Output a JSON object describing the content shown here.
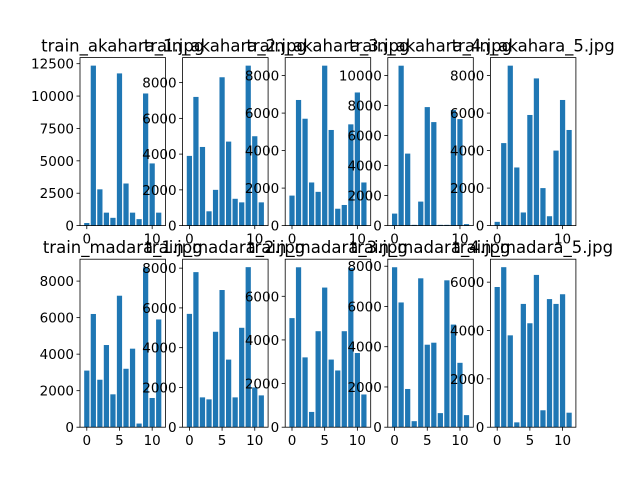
{
  "chart_data": [
    {
      "type": "bar",
      "title": "train_akahara_1.jpg",
      "color": "#1f77b4",
      "x": [
        0,
        1,
        2,
        3,
        4,
        5,
        6,
        7,
        8,
        9,
        10,
        11
      ],
      "values": [
        200,
        12350,
        2800,
        1000,
        600,
        11750,
        3250,
        1000,
        500,
        10200,
        4800,
        1000
      ],
      "xlim": [
        -1.04,
        12.04
      ],
      "ylim": [
        0,
        12970
      ],
      "xticks": [
        0,
        10
      ],
      "yticks": [
        0,
        2500,
        5000,
        7500,
        10000,
        12500
      ]
    },
    {
      "type": "bar",
      "title": "train_akahara_2.jpg",
      "color": "#1f77b4",
      "x": [
        0,
        1,
        2,
        3,
        4,
        5,
        6,
        7,
        8,
        9,
        10,
        11
      ],
      "values": [
        3900,
        7200,
        4400,
        800,
        2000,
        8300,
        4700,
        1500,
        1300,
        8950,
        5000,
        1300
      ],
      "xlim": [
        -1.04,
        12.04
      ],
      "ylim": [
        0,
        9400
      ],
      "xticks": [
        0,
        10
      ],
      "yticks": [
        0,
        2000,
        4000,
        6000,
        8000
      ]
    },
    {
      "type": "bar",
      "title": "train_akahara_3.jpg",
      "color": "#1f77b4",
      "x": [
        0,
        1,
        2,
        3,
        4,
        5,
        6,
        7,
        8,
        9,
        10,
        11
      ],
      "values": [
        1600,
        6700,
        5700,
        2300,
        1800,
        8530,
        5100,
        900,
        1100,
        5400,
        7100,
        2300
      ],
      "xlim": [
        -1.04,
        12.04
      ],
      "ylim": [
        0,
        8960
      ],
      "xticks": [
        0,
        10
      ],
      "yticks": [
        0,
        2000,
        4000,
        6000,
        8000
      ]
    },
    {
      "type": "bar",
      "title": "train_akahara_4.jpg",
      "color": "#1f77b4",
      "x": [
        0,
        1,
        2,
        3,
        4,
        5,
        6,
        7,
        8,
        9,
        10,
        11
      ],
      "values": [
        800,
        10660,
        4800,
        50,
        1600,
        7900,
        6900,
        50,
        50,
        7700,
        7100,
        100
      ],
      "xlim": [
        -1.04,
        12.04
      ],
      "ylim": [
        0,
        11200
      ],
      "xticks": [
        0,
        10
      ],
      "yticks": [
        0,
        2000,
        4000,
        6000,
        8000,
        10000
      ]
    },
    {
      "type": "bar",
      "title": "train_akahara_5.jpg",
      "color": "#1f77b4",
      "x": [
        0,
        1,
        2,
        3,
        4,
        5,
        6,
        7,
        8,
        9,
        10,
        11
      ],
      "values": [
        200,
        4400,
        8530,
        3100,
        700,
        5900,
        7850,
        2000,
        500,
        4000,
        6700,
        5100
      ],
      "xlim": [
        -1.04,
        12.04
      ],
      "ylim": [
        0,
        8960
      ],
      "xticks": [
        0,
        10
      ],
      "yticks": [
        0,
        2000,
        4000,
        6000,
        8000
      ]
    },
    {
      "type": "bar",
      "title": "train_madara_1.jpg",
      "color": "#1f77b4",
      "x": [
        0,
        1,
        2,
        3,
        4,
        5,
        6,
        7,
        8,
        9,
        10,
        11
      ],
      "values": [
        3100,
        6200,
        2600,
        4500,
        1800,
        7200,
        3200,
        4300,
        200,
        8760,
        1600,
        5900
      ],
      "xlim": [
        -1.04,
        12.04
      ],
      "ylim": [
        0,
        9200
      ],
      "xticks": [
        0,
        5,
        10
      ],
      "yticks": [
        0,
        2000,
        4000,
        6000,
        8000
      ]
    },
    {
      "type": "bar",
      "title": "train_madara_2.jpg",
      "color": "#1f77b4",
      "x": [
        0,
        1,
        2,
        3,
        4,
        5,
        6,
        7,
        8,
        9,
        10,
        11
      ],
      "values": [
        5700,
        7800,
        1500,
        1400,
        4800,
        6900,
        3400,
        1500,
        5000,
        8050,
        2000,
        1600
      ],
      "xlim": [
        -1.04,
        12.04
      ],
      "ylim": [
        0,
        8450
      ],
      "xticks": [
        0,
        5,
        10
      ],
      "yticks": [
        0,
        2000,
        4000,
        6000,
        8000
      ]
    },
    {
      "type": "bar",
      "title": "train_madara_3.jpg",
      "color": "#1f77b4",
      "x": [
        0,
        1,
        2,
        3,
        4,
        5,
        6,
        7,
        8,
        9,
        10,
        11
      ],
      "values": [
        5000,
        7330,
        3200,
        700,
        4400,
        6400,
        3100,
        2600,
        4400,
        7300,
        3400,
        1500
      ],
      "xlim": [
        -1.04,
        12.04
      ],
      "ylim": [
        0,
        7700
      ],
      "xticks": [
        0,
        5,
        10
      ],
      "yticks": [
        0,
        2000,
        4000,
        6000
      ]
    },
    {
      "type": "bar",
      "title": "train_madara_4.jpg",
      "color": "#1f77b4",
      "x": [
        0,
        1,
        2,
        3,
        4,
        5,
        6,
        7,
        8,
        9,
        10,
        11
      ],
      "values": [
        7950,
        6200,
        1900,
        300,
        7400,
        4100,
        4200,
        700,
        7300,
        5100,
        3200,
        600
      ],
      "xlim": [
        -1.04,
        12.04
      ],
      "ylim": [
        0,
        8350
      ],
      "xticks": [
        0,
        5,
        10
      ],
      "yticks": [
        0,
        2000,
        4000,
        6000,
        8000
      ]
    },
    {
      "type": "bar",
      "title": "train_madara_5.jpg",
      "color": "#1f77b4",
      "x": [
        0,
        1,
        2,
        3,
        4,
        5,
        6,
        7,
        8,
        9,
        10,
        11
      ],
      "values": [
        5800,
        6620,
        3800,
        200,
        5100,
        4300,
        6300,
        700,
        5300,
        5100,
        5500,
        600
      ],
      "xlim": [
        -1.04,
        12.04
      ],
      "ylim": [
        0,
        6950
      ],
      "xticks": [
        0,
        5,
        10
      ],
      "yticks": [
        0,
        2000,
        4000,
        6000
      ]
    }
  ]
}
